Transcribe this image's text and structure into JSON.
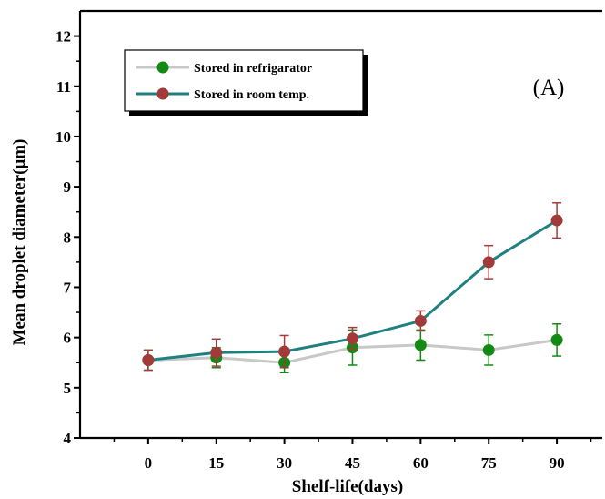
{
  "chart_data": {
    "type": "line",
    "title": "",
    "panel_label": "(A)",
    "xlabel": "Shelf-life(days)",
    "ylabel": "Mean droplet diameter(μm)",
    "x": [
      0,
      15,
      30,
      45,
      60,
      75,
      90
    ],
    "x_tick_labels": [
      "0",
      "15",
      "30",
      "45",
      "60",
      "75",
      "90"
    ],
    "xlim": [
      -15,
      100
    ],
    "ylim": [
      4,
      12.5
    ],
    "y_ticks": [
      4,
      5,
      6,
      7,
      8,
      9,
      10,
      11,
      12
    ],
    "y_tick_labels": [
      "4",
      "5",
      "6",
      "7",
      "8",
      "9",
      "10",
      "11",
      "12"
    ],
    "grid": false,
    "legend_position": "top-left",
    "series": [
      {
        "name": "Stored in refrigarator",
        "line_color": "#c8c8c8",
        "marker_color": "#138a13",
        "values": [
          5.55,
          5.6,
          5.5,
          5.8,
          5.85,
          5.75,
          5.95
        ],
        "errors": [
          0.2,
          0.2,
          0.2,
          0.35,
          0.3,
          0.3,
          0.32
        ]
      },
      {
        "name": "Stored in room temp.",
        "line_color": "#1e8080",
        "marker_color": "#a33a3a",
        "values": [
          5.55,
          5.7,
          5.72,
          5.98,
          6.33,
          7.5,
          8.33
        ],
        "errors": [
          0.2,
          0.27,
          0.32,
          0.22,
          0.2,
          0.33,
          0.35
        ]
      }
    ]
  }
}
